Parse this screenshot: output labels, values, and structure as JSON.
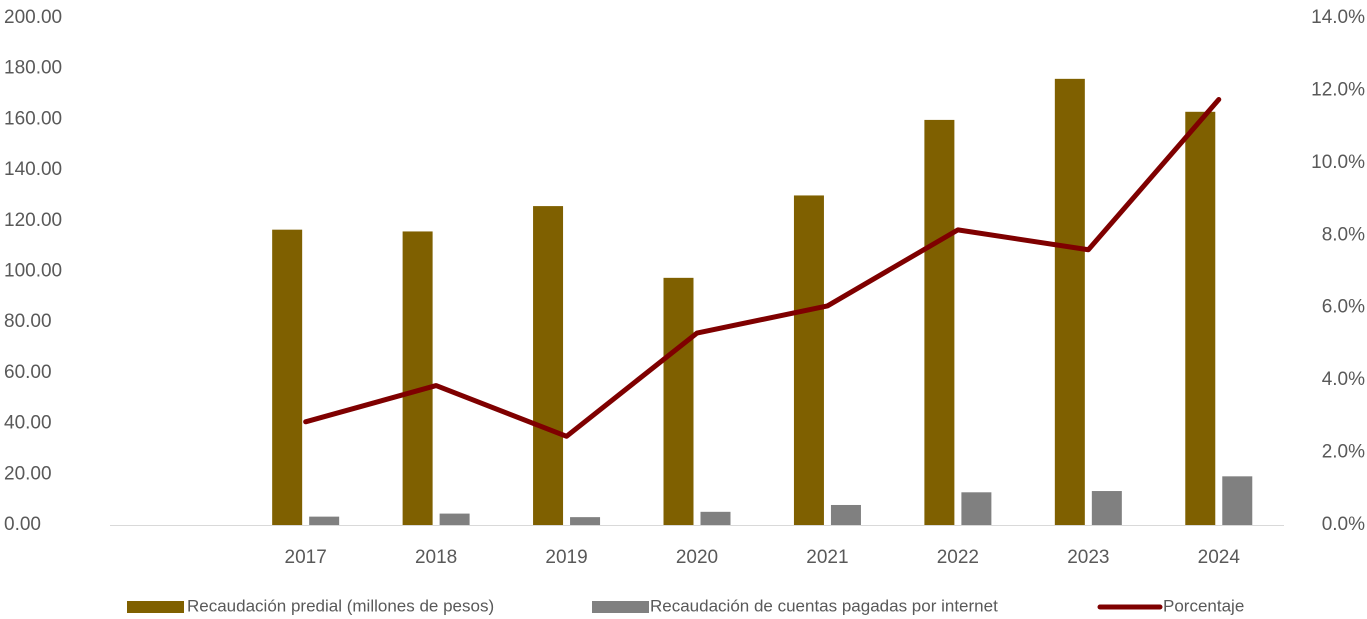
{
  "chart_data": {
    "type": "bar",
    "categories": [
      "",
      "2017",
      "2018",
      "2019",
      "2020",
      "2021",
      "2022",
      "2023",
      "2024"
    ],
    "series": [
      {
        "name": "Recaudación predial (millones de pesos)",
        "type": "bar",
        "axis": "left",
        "color": "#7f6000",
        "values": [
          null,
          116.5,
          115.8,
          125.8,
          97.5,
          130.0,
          159.8,
          176.0,
          163.0
        ]
      },
      {
        "name": "Recaudación de cuentas pagadas por internet",
        "type": "bar",
        "axis": "left",
        "color": "#808080",
        "values": [
          null,
          3.3,
          4.5,
          3.1,
          5.2,
          7.9,
          12.9,
          13.4,
          19.2
        ]
      },
      {
        "name": "Porcentaje",
        "type": "line",
        "axis": "right",
        "color": "#7f0000",
        "values": [
          null,
          2.85,
          3.85,
          2.45,
          5.3,
          6.05,
          8.15,
          7.6,
          11.75
        ]
      }
    ],
    "left_axis": {
      "min": 0,
      "max": 200,
      "step": 20,
      "tick_labels": [
        "0.00",
        "20.00",
        "40.00",
        "60.00",
        "80.00",
        "100.00",
        "120.00",
        "140.00",
        "160.00",
        "180.00",
        "200.00"
      ]
    },
    "right_axis": {
      "min": 0,
      "max": 14,
      "step": 2,
      "tick_labels": [
        "0.0%",
        "2.0%",
        "4.0%",
        "6.0%",
        "8.0%",
        "10.0%",
        "12.0%",
        "14.0%"
      ]
    },
    "grid": false,
    "legend_position": "bottom"
  }
}
